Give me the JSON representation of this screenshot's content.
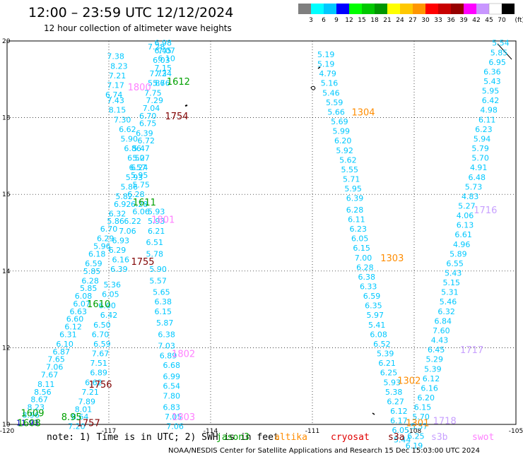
{
  "title": "12:00 – 23:59 UTC 12/12/2024",
  "subtitle": "12 hour collection of altimeter wave heights",
  "note": "note: 1) Time is in UTC; 2) SWH is in feet",
  "footer": "NOAA/NESDIS Center for Satellite Applications and Research   15 Dec 15:03:00 UTC 2024",
  "colorbar": {
    "unit": "(ft)",
    "ticks": [
      "3",
      "6",
      "9",
      "12",
      "15",
      "18",
      "21",
      "24",
      "27",
      "30",
      "33",
      "36",
      "39",
      "42",
      "45",
      "70"
    ],
    "colors": [
      "#7f7f7f",
      "#00ffff",
      "#00c8ff",
      "#0000ff",
      "#00ff00",
      "#00c800",
      "#009600",
      "#ffff00",
      "#ffc800",
      "#ff9600",
      "#ff0000",
      "#c80000",
      "#960000",
      "#ff00ff",
      "#c896ff",
      "#ffffff",
      "#000000"
    ]
  },
  "satellites": [
    {
      "name": "jason3",
      "color": "#00a000"
    },
    {
      "name": "altika",
      "color": "#ff8c00"
    },
    {
      "name": "cryosat",
      "color": "#e00000"
    },
    {
      "name": "s3a",
      "color": "#800000"
    },
    {
      "name": "s3b",
      "color": "#c8a0ff"
    },
    {
      "name": "swot",
      "color": "#ff80ff"
    }
  ],
  "chart_data": {
    "type": "scatter",
    "xlim": [
      -120,
      -105
    ],
    "ylim": [
      10,
      20
    ],
    "xticks": [
      "-120",
      "-117",
      "-114",
      "-111",
      "-108",
      "-105"
    ],
    "yticks": [
      "10",
      "12",
      "14",
      "16",
      "18",
      "20"
    ],
    "grid": true,
    "colors": {
      "swh": "#00c8ff",
      "swh_high": "#0000c8"
    },
    "points": [
      {
        "x": -116.8,
        "y": 19.6,
        "v": "7.38"
      },
      {
        "x": -116.7,
        "y": 19.35,
        "v": "8.23"
      },
      {
        "x": -116.75,
        "y": 19.1,
        "v": "7.21"
      },
      {
        "x": -116.8,
        "y": 18.85,
        "v": "7.17"
      },
      {
        "x": -116.85,
        "y": 18.6,
        "v": "6.74"
      },
      {
        "x": -116.8,
        "y": 18.45,
        "v": "7.43"
      },
      {
        "x": -116.75,
        "y": 18.2,
        "v": "8.15"
      },
      {
        "x": -116.6,
        "y": 17.95,
        "v": "7.30"
      },
      {
        "x": -116.45,
        "y": 17.7,
        "v": "6.62"
      },
      {
        "x": -116.4,
        "y": 17.45,
        "v": "5.90"
      },
      {
        "x": -116.3,
        "y": 17.2,
        "v": "6.86"
      },
      {
        "x": -116.2,
        "y": 16.95,
        "v": "6.50"
      },
      {
        "x": -116.15,
        "y": 16.7,
        "v": "6.57"
      },
      {
        "x": -116.25,
        "y": 16.45,
        "v": "5.93"
      },
      {
        "x": -116.4,
        "y": 16.2,
        "v": "5.86"
      },
      {
        "x": -116.55,
        "y": 15.95,
        "v": "5.82"
      },
      {
        "x": -116.6,
        "y": 15.75,
        "v": "6.92"
      },
      {
        "x": -116.75,
        "y": 15.5,
        "v": "6.32"
      },
      {
        "x": -116.8,
        "y": 15.3,
        "v": "5.86"
      },
      {
        "x": -117.0,
        "y": 15.1,
        "v": "6.70"
      },
      {
        "x": -117.1,
        "y": 14.85,
        "v": "6.29"
      },
      {
        "x": -117.2,
        "y": 14.65,
        "v": "5.96"
      },
      {
        "x": -117.35,
        "y": 14.45,
        "v": "6.18"
      },
      {
        "x": -117.45,
        "y": 14.2,
        "v": "6.59"
      },
      {
        "x": -117.5,
        "y": 14.0,
        "v": "5.85"
      },
      {
        "x": -117.55,
        "y": 13.75,
        "v": "6.28"
      },
      {
        "x": -117.6,
        "y": 13.55,
        "v": "5.85"
      },
      {
        "x": -117.75,
        "y": 13.35,
        "v": "6.08"
      },
      {
        "x": -117.8,
        "y": 13.15,
        "v": "6.07"
      },
      {
        "x": -117.9,
        "y": 12.95,
        "v": "6.63"
      },
      {
        "x": -118.0,
        "y": 12.75,
        "v": "6.60"
      },
      {
        "x": -118.05,
        "y": 12.55,
        "v": "6.12"
      },
      {
        "x": -118.2,
        "y": 12.35,
        "v": "6.31"
      },
      {
        "x": -118.3,
        "y": 12.1,
        "v": "6.10"
      },
      {
        "x": -118.4,
        "y": 11.9,
        "v": "6.87"
      },
      {
        "x": -118.55,
        "y": 11.7,
        "v": "7.65"
      },
      {
        "x": -118.6,
        "y": 11.5,
        "v": "7.06"
      },
      {
        "x": -118.75,
        "y": 11.3,
        "v": "7.67"
      },
      {
        "x": -118.85,
        "y": 11.05,
        "v": "8.11"
      },
      {
        "x": -118.95,
        "y": 10.85,
        "v": "8.56"
      },
      {
        "x": -119.05,
        "y": 10.65,
        "v": "8.67"
      },
      {
        "x": -119.15,
        "y": 10.45,
        "v": "8.23"
      },
      {
        "x": -119.3,
        "y": 10.25,
        "v": "8.96"
      },
      {
        "x": -119.4,
        "y": 10.05,
        "v": "11.93",
        "high": true
      },
      {
        "x": -115.6,
        "y": 19.85,
        "v": "7.28"
      },
      {
        "x": -115.4,
        "y": 19.95,
        "v": "6.98"
      },
      {
        "x": -115.4,
        "y": 19.75,
        "v": "6.45"
      },
      {
        "x": -115.3,
        "y": 19.75,
        "v": "7.07"
      },
      {
        "x": -115.45,
        "y": 19.5,
        "v": "6.03"
      },
      {
        "x": -115.3,
        "y": 19.55,
        "v": "6.10"
      },
      {
        "x": -115.4,
        "y": 19.3,
        "v": "7.15"
      },
      {
        "x": -115.55,
        "y": 19.15,
        "v": "7.72"
      },
      {
        "x": -115.4,
        "y": 19.15,
        "v": "7.34"
      },
      {
        "x": -115.6,
        "y": 18.9,
        "v": "5.86"
      },
      {
        "x": -115.45,
        "y": 18.9,
        "v": "5.76"
      },
      {
        "x": -115.7,
        "y": 18.65,
        "v": "7.75"
      },
      {
        "x": -115.65,
        "y": 18.45,
        "v": "7.29"
      },
      {
        "x": -115.75,
        "y": 18.25,
        "v": "7.04"
      },
      {
        "x": -115.85,
        "y": 18.05,
        "v": "6.70"
      },
      {
        "x": -115.85,
        "y": 17.85,
        "v": "6.75"
      },
      {
        "x": -115.95,
        "y": 17.6,
        "v": "6.39"
      },
      {
        "x": -115.9,
        "y": 17.4,
        "v": "6.72"
      },
      {
        "x": -116.05,
        "y": 17.2,
        "v": "5.47"
      },
      {
        "x": -116.05,
        "y": 16.95,
        "v": "5.27"
      },
      {
        "x": -116.1,
        "y": 16.7,
        "v": "6.24"
      },
      {
        "x": -116.1,
        "y": 16.5,
        "v": "5.95"
      },
      {
        "x": -116.05,
        "y": 16.25,
        "v": "5.75"
      },
      {
        "x": -116.2,
        "y": 16.0,
        "v": "6.28"
      },
      {
        "x": -116.1,
        "y": 15.75,
        "v": "6.28"
      },
      {
        "x": -116.05,
        "y": 15.55,
        "v": "6.06"
      },
      {
        "x": -116.3,
        "y": 15.3,
        "v": "6.22"
      },
      {
        "x": -116.45,
        "y": 15.05,
        "v": "7.06"
      },
      {
        "x": -116.65,
        "y": 14.8,
        "v": "6.93"
      },
      {
        "x": -116.75,
        "y": 14.55,
        "v": "6.29"
      },
      {
        "x": -116.65,
        "y": 14.3,
        "v": "6.16"
      },
      {
        "x": -116.7,
        "y": 14.05,
        "v": "6.39"
      },
      {
        "x": -116.9,
        "y": 13.65,
        "v": "5.36"
      },
      {
        "x": -116.95,
        "y": 13.4,
        "v": "6.05"
      },
      {
        "x": -117.05,
        "y": 13.1,
        "v": "6.00"
      },
      {
        "x": -117.0,
        "y": 12.85,
        "v": "6.42"
      },
      {
        "x": -117.2,
        "y": 12.6,
        "v": "6.50"
      },
      {
        "x": -117.25,
        "y": 12.35,
        "v": "6.70"
      },
      {
        "x": -117.2,
        "y": 12.1,
        "v": "6.59"
      },
      {
        "x": -117.25,
        "y": 11.85,
        "v": "7.67"
      },
      {
        "x": -117.3,
        "y": 11.6,
        "v": "7.51"
      },
      {
        "x": -117.3,
        "y": 11.35,
        "v": "6.89"
      },
      {
        "x": -117.45,
        "y": 11.1,
        "v": "6.62"
      },
      {
        "x": -117.55,
        "y": 10.85,
        "v": "7.21"
      },
      {
        "x": -117.65,
        "y": 10.6,
        "v": "7.89"
      },
      {
        "x": -117.75,
        "y": 10.4,
        "v": "8.01"
      },
      {
        "x": -117.85,
        "y": 10.2,
        "v": "8.64"
      },
      {
        "x": -117.95,
        "y": 9.95,
        "v": "7.20"
      },
      {
        "x": -115.6,
        "y": 15.55,
        "v": "5.93"
      },
      {
        "x": -115.6,
        "y": 15.3,
        "v": "5.93"
      },
      {
        "x": -115.6,
        "y": 15.05,
        "v": "6.21"
      },
      {
        "x": -115.65,
        "y": 14.75,
        "v": "6.51"
      },
      {
        "x": -115.65,
        "y": 14.45,
        "v": "5.78"
      },
      {
        "x": -115.55,
        "y": 14.05,
        "v": "5.90"
      },
      {
        "x": -115.55,
        "y": 13.75,
        "v": "5.57"
      },
      {
        "x": -115.45,
        "y": 13.45,
        "v": "5.65"
      },
      {
        "x": -115.4,
        "y": 13.2,
        "v": "6.38"
      },
      {
        "x": -115.4,
        "y": 12.95,
        "v": "6.15"
      },
      {
        "x": -115.35,
        "y": 12.65,
        "v": "5.87"
      },
      {
        "x": -115.3,
        "y": 12.35,
        "v": "6.38"
      },
      {
        "x": -115.3,
        "y": 12.05,
        "v": "7.03"
      },
      {
        "x": -115.25,
        "y": 11.8,
        "v": "6.89"
      },
      {
        "x": -115.15,
        "y": 11.55,
        "v": "6.68"
      },
      {
        "x": -115.15,
        "y": 11.25,
        "v": "6.99"
      },
      {
        "x": -115.15,
        "y": 11.0,
        "v": "6.54"
      },
      {
        "x": -115.15,
        "y": 10.75,
        "v": "7.80"
      },
      {
        "x": -115.15,
        "y": 10.45,
        "v": "6.83"
      },
      {
        "x": -115.1,
        "y": 10.2,
        "v": "7.05"
      },
      {
        "x": -115.05,
        "y": 9.95,
        "v": "7.06"
      },
      {
        "x": -110.6,
        "y": 19.65,
        "v": "5.19"
      },
      {
        "x": -110.6,
        "y": 19.4,
        "v": "5.19"
      },
      {
        "x": -110.55,
        "y": 19.15,
        "v": "4.79"
      },
      {
        "x": -110.5,
        "y": 18.9,
        "v": "5.16"
      },
      {
        "x": -110.45,
        "y": 18.65,
        "v": "5.46"
      },
      {
        "x": -110.35,
        "y": 18.4,
        "v": "5.59"
      },
      {
        "x": -110.3,
        "y": 18.15,
        "v": "5.66"
      },
      {
        "x": -110.2,
        "y": 17.9,
        "v": "5.69"
      },
      {
        "x": -110.15,
        "y": 17.65,
        "v": "5.99"
      },
      {
        "x": -110.1,
        "y": 17.4,
        "v": "6.20"
      },
      {
        "x": -110.05,
        "y": 17.15,
        "v": "5.92"
      },
      {
        "x": -109.95,
        "y": 16.9,
        "v": "5.62"
      },
      {
        "x": -109.9,
        "y": 16.65,
        "v": "5.55"
      },
      {
        "x": -109.85,
        "y": 16.4,
        "v": "5.71"
      },
      {
        "x": -109.8,
        "y": 16.15,
        "v": "5.95"
      },
      {
        "x": -109.75,
        "y": 15.9,
        "v": "6.39"
      },
      {
        "x": -109.75,
        "y": 15.6,
        "v": "6.28"
      },
      {
        "x": -109.7,
        "y": 15.35,
        "v": "6.11"
      },
      {
        "x": -109.65,
        "y": 15.1,
        "v": "6.23"
      },
      {
        "x": -109.6,
        "y": 14.85,
        "v": "6.05"
      },
      {
        "x": -109.55,
        "y": 14.6,
        "v": "6.15"
      },
      {
        "x": -109.5,
        "y": 14.35,
        "v": "7.00"
      },
      {
        "x": -109.45,
        "y": 14.1,
        "v": "6.28"
      },
      {
        "x": -109.4,
        "y": 13.85,
        "v": "6.38"
      },
      {
        "x": -109.35,
        "y": 13.6,
        "v": "6.33"
      },
      {
        "x": -109.25,
        "y": 13.35,
        "v": "6.59"
      },
      {
        "x": -109.2,
        "y": 13.1,
        "v": "6.35"
      },
      {
        "x": -109.15,
        "y": 12.85,
        "v": "5.97"
      },
      {
        "x": -109.1,
        "y": 12.6,
        "v": "5.41"
      },
      {
        "x": -109.05,
        "y": 12.35,
        "v": "6.08"
      },
      {
        "x": -108.95,
        "y": 12.1,
        "v": "6.52"
      },
      {
        "x": -108.85,
        "y": 11.85,
        "v": "5.39"
      },
      {
        "x": -108.8,
        "y": 11.6,
        "v": "6.21"
      },
      {
        "x": -108.75,
        "y": 11.35,
        "v": "6.25"
      },
      {
        "x": -108.65,
        "y": 11.1,
        "v": "5.93"
      },
      {
        "x": -108.6,
        "y": 10.85,
        "v": "5.38"
      },
      {
        "x": -108.55,
        "y": 10.6,
        "v": "6.27"
      },
      {
        "x": -108.45,
        "y": 10.35,
        "v": "6.12"
      },
      {
        "x": -108.45,
        "y": 10.1,
        "v": "6.17"
      },
      {
        "x": -108.4,
        "y": 9.85,
        "v": "6.05"
      },
      {
        "x": -108.35,
        "y": 9.6,
        "v": "5.44"
      },
      {
        "x": -105.45,
        "y": 19.95,
        "v": "5.54"
      },
      {
        "x": -105.5,
        "y": 19.7,
        "v": "5.85"
      },
      {
        "x": -105.55,
        "y": 19.45,
        "v": "6.95"
      },
      {
        "x": -105.7,
        "y": 19.2,
        "v": "6.36"
      },
      {
        "x": -105.7,
        "y": 18.95,
        "v": "5.43"
      },
      {
        "x": -105.75,
        "y": 18.7,
        "v": "5.95"
      },
      {
        "x": -105.75,
        "y": 18.45,
        "v": "6.42"
      },
      {
        "x": -105.8,
        "y": 18.2,
        "v": "4.98"
      },
      {
        "x": -105.85,
        "y": 17.95,
        "v": "6.11"
      },
      {
        "x": -105.95,
        "y": 17.7,
        "v": "6.23"
      },
      {
        "x": -106.0,
        "y": 17.45,
        "v": "5.94"
      },
      {
        "x": -106.05,
        "y": 17.2,
        "v": "5.79"
      },
      {
        "x": -106.05,
        "y": 16.95,
        "v": "5.70"
      },
      {
        "x": -106.1,
        "y": 16.7,
        "v": "4.91"
      },
      {
        "x": -106.15,
        "y": 16.45,
        "v": "6.48"
      },
      {
        "x": -106.25,
        "y": 16.2,
        "v": "5.73"
      },
      {
        "x": -106.35,
        "y": 15.95,
        "v": "4.83"
      },
      {
        "x": -106.45,
        "y": 15.7,
        "v": "5.27"
      },
      {
        "x": -106.5,
        "y": 15.45,
        "v": "4.06"
      },
      {
        "x": -106.5,
        "y": 15.2,
        "v": "6.13"
      },
      {
        "x": -106.55,
        "y": 14.95,
        "v": "6.61"
      },
      {
        "x": -106.6,
        "y": 14.7,
        "v": "4.96"
      },
      {
        "x": -106.7,
        "y": 14.45,
        "v": "5.89"
      },
      {
        "x": -106.8,
        "y": 14.2,
        "v": "6.55"
      },
      {
        "x": -106.85,
        "y": 13.95,
        "v": "5.43"
      },
      {
        "x": -106.9,
        "y": 13.7,
        "v": "5.15"
      },
      {
        "x": -106.95,
        "y": 13.45,
        "v": "5.31"
      },
      {
        "x": -107.0,
        "y": 13.2,
        "v": "5.46"
      },
      {
        "x": -107.05,
        "y": 12.95,
        "v": "6.32"
      },
      {
        "x": -107.15,
        "y": 12.7,
        "v": "6.84"
      },
      {
        "x": -107.2,
        "y": 12.45,
        "v": "7.60"
      },
      {
        "x": -107.25,
        "y": 12.2,
        "v": "4.43"
      },
      {
        "x": -107.35,
        "y": 11.95,
        "v": "6.45"
      },
      {
        "x": -107.4,
        "y": 11.7,
        "v": "5.29"
      },
      {
        "x": -107.45,
        "y": 11.45,
        "v": "5.39"
      },
      {
        "x": -107.5,
        "y": 11.2,
        "v": "6.12"
      },
      {
        "x": -107.55,
        "y": 10.95,
        "v": "6.16"
      },
      {
        "x": -107.65,
        "y": 10.7,
        "v": "6.20"
      },
      {
        "x": -107.75,
        "y": 10.45,
        "v": "6.15"
      },
      {
        "x": -107.8,
        "y": 10.2,
        "v": "5.70"
      },
      {
        "x": -107.85,
        "y": 9.95,
        "v": "5.57"
      },
      {
        "x": -107.95,
        "y": 9.7,
        "v": "6.25"
      },
      {
        "x": -108.0,
        "y": 9.45,
        "v": "6.19"
      }
    ],
    "labels": [
      {
        "x": -114.95,
        "y": 18.95,
        "text": "1612",
        "sat": "jason3"
      },
      {
        "x": -116.1,
        "y": 18.8,
        "text": "1800",
        "sat": "swot"
      },
      {
        "x": -115.0,
        "y": 18.05,
        "text": "1754",
        "sat": "s3a"
      },
      {
        "x": -115.95,
        "y": 15.8,
        "text": "1611",
        "sat": "jason3"
      },
      {
        "x": -115.4,
        "y": 15.35,
        "text": "1801",
        "sat": "swot"
      },
      {
        "x": -116.0,
        "y": 14.25,
        "text": "1755",
        "sat": "s3a"
      },
      {
        "x": -117.3,
        "y": 13.15,
        "text": "1610",
        "sat": "jason3"
      },
      {
        "x": -114.8,
        "y": 11.85,
        "text": "1802",
        "sat": "swot"
      },
      {
        "x": -117.25,
        "y": 11.05,
        "text": "1756",
        "sat": "s3a"
      },
      {
        "x": -114.8,
        "y": 10.2,
        "text": "1803",
        "sat": "swot"
      },
      {
        "x": -119.25,
        "y": 10.3,
        "text": "1609",
        "sat": "jason3"
      },
      {
        "x": -119.35,
        "y": 10.05,
        "text": "1608",
        "sat": "jason3"
      },
      {
        "x": -117.6,
        "y": 10.05,
        "text": "1757",
        "sat": "s3a"
      },
      {
        "x": -109.5,
        "y": 18.15,
        "text": "1304",
        "sat": "altika"
      },
      {
        "x": -108.65,
        "y": 14.35,
        "text": "1303",
        "sat": "altika"
      },
      {
        "x": -108.15,
        "y": 11.15,
        "text": "1302",
        "sat": "altika"
      },
      {
        "x": -107.9,
        "y": 10.05,
        "text": "1301",
        "sat": "altika"
      },
      {
        "x": -105.9,
        "y": 15.6,
        "text": "1716",
        "sat": "s3b"
      },
      {
        "x": -106.3,
        "y": 11.95,
        "text": "1717",
        "sat": "s3b"
      },
      {
        "x": -107.1,
        "y": 10.1,
        "text": "1718",
        "sat": "s3b"
      },
      {
        "x": -118.1,
        "y": 10.2,
        "text": "8.95",
        "sat": "jason3"
      }
    ]
  }
}
